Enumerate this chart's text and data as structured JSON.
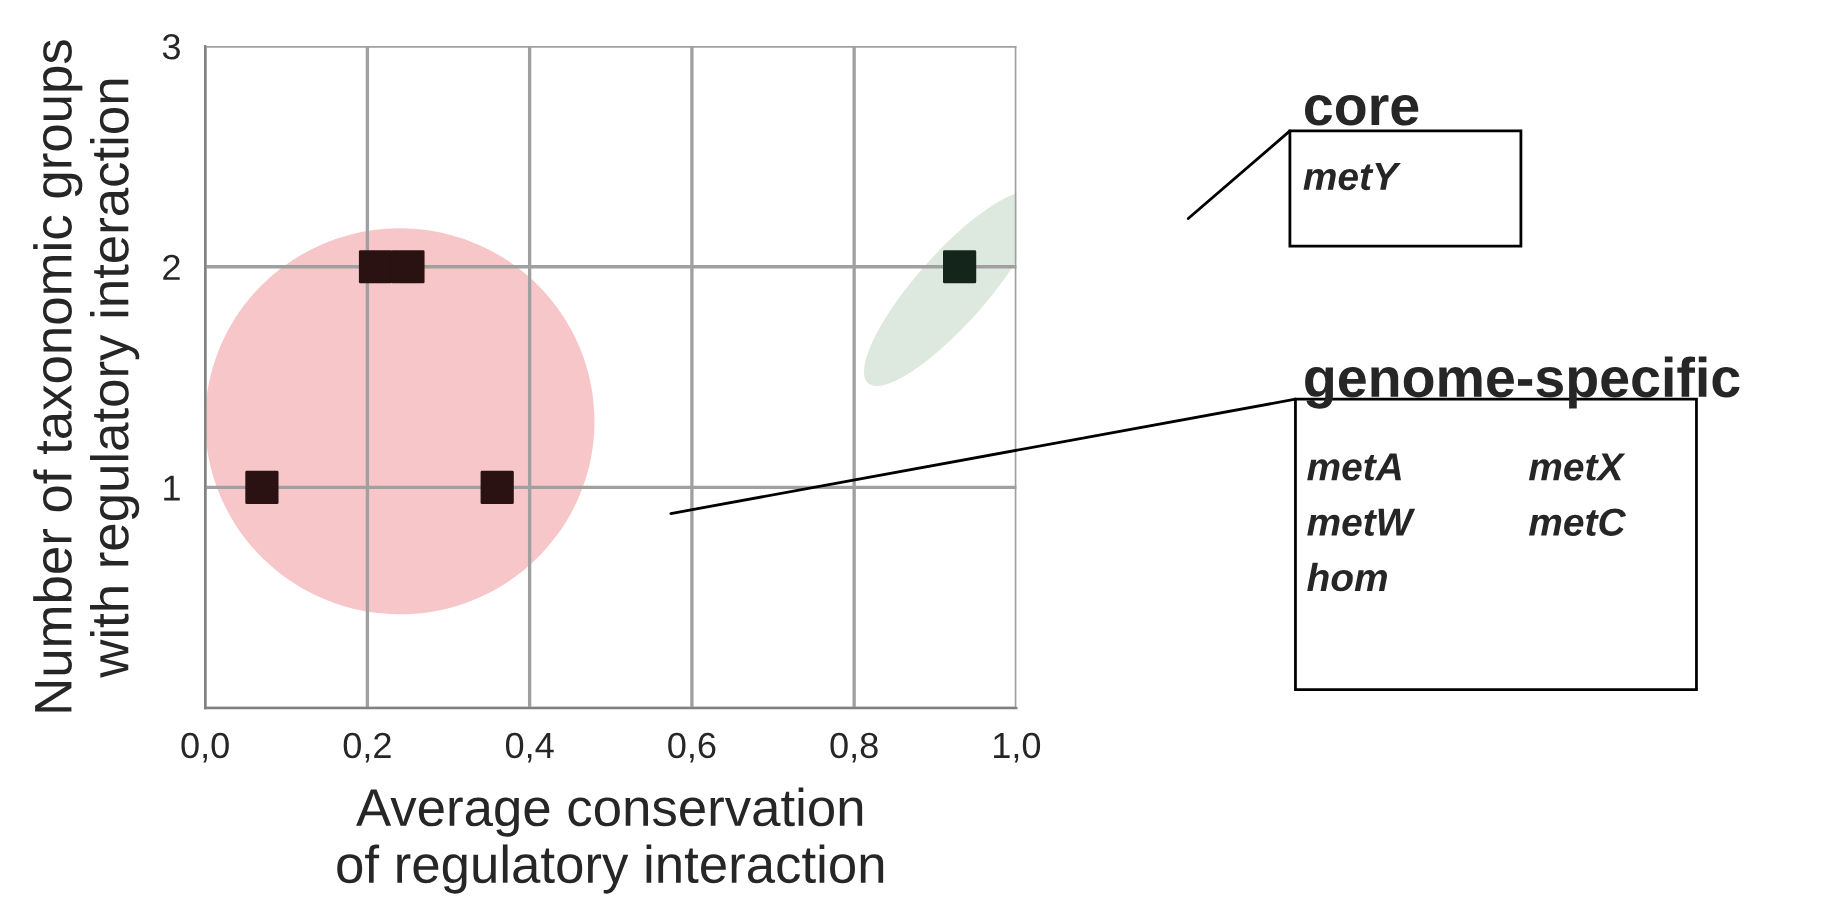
{
  "chart_data": {
    "type": "scatter",
    "xlabel": "Average conservation\nof regulatory interaction",
    "ylabel": "Number of taxonomic groups\nwith regulatory interaction",
    "x": [
      0.07,
      0.21,
      0.25,
      0.36,
      0.93
    ],
    "values": [
      1,
      2,
      2,
      1,
      2
    ],
    "colors": [
      "#2b1212",
      "#2b1212",
      "#2b1212",
      "#2b1212",
      "#14261c"
    ],
    "marker": "square",
    "xlim": [
      0,
      1
    ],
    "ylim": [
      0,
      3
    ],
    "xticks": [
      {
        "value": 0,
        "label": "0,0"
      },
      {
        "value": 0.2,
        "label": "0,2"
      },
      {
        "value": 0.4,
        "label": "0,4"
      },
      {
        "value": 0.6,
        "label": "0,6"
      },
      {
        "value": 0.8,
        "label": "0,8"
      },
      {
        "value": 1,
        "label": "1,0"
      }
    ],
    "yticks": [
      {
        "value": 0,
        "label": null
      },
      1,
      2,
      3
    ],
    "grid": true,
    "annotations": [
      "core",
      "metY",
      "genome-specific",
      "metA",
      "metX",
      "metW",
      "metC",
      "hom"
    ]
  }
}
